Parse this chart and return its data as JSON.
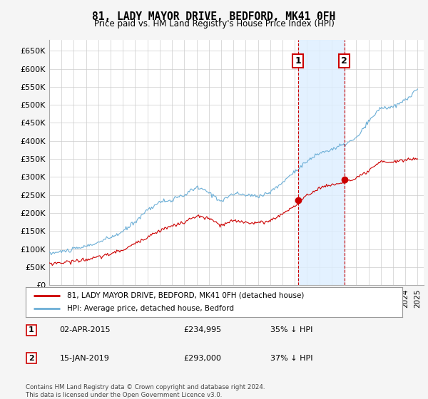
{
  "title": "81, LADY MAYOR DRIVE, BEDFORD, MK41 0FH",
  "subtitle": "Price paid vs. HM Land Registry's House Price Index (HPI)",
  "hpi_label": "HPI: Average price, detached house, Bedford",
  "property_label": "81, LADY MAYOR DRIVE, BEDFORD, MK41 0FH (detached house)",
  "footer": "Contains HM Land Registry data © Crown copyright and database right 2024.\nThis data is licensed under the Open Government Licence v3.0.",
  "purchase1": {
    "date": "02-APR-2015",
    "price": 234995,
    "hpi_diff": "35% ↓ HPI",
    "label": "1"
  },
  "purchase2": {
    "date": "15-JAN-2019",
    "price": 293000,
    "hpi_diff": "37% ↓ HPI",
    "label": "2"
  },
  "ylim": [
    0,
    680000
  ],
  "yticks": [
    0,
    50000,
    100000,
    150000,
    200000,
    250000,
    300000,
    350000,
    400000,
    450000,
    500000,
    550000,
    600000,
    650000
  ],
  "hpi_color": "#6baed6",
  "property_color": "#cc0000",
  "vline_color": "#cc0000",
  "box_color": "#cc0000",
  "shade_color": "#ddeeff",
  "background_color": "#f5f5f5",
  "plot_bg_color": "#ffffff",
  "purchase1_x": 2015.25,
  "purchase2_x": 2019.04,
  "purchase1_y": 234995,
  "purchase2_y": 293000,
  "xmin": 1995,
  "xmax": 2025.5
}
